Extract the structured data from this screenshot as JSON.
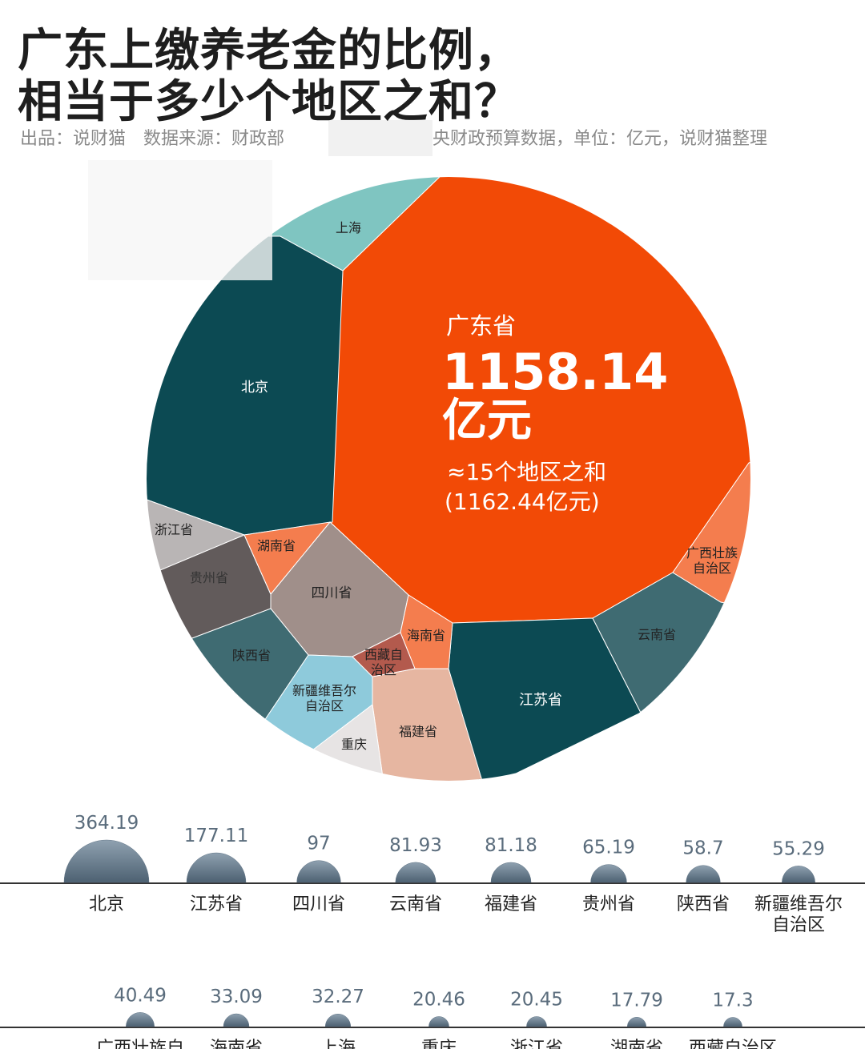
{
  "chart_data": {
    "type": "voronoi-bubble",
    "title": [
      "广东上缴养老金的比例，",
      "相当于多少个地区之和？"
    ],
    "subtitle": [
      "出品：说财猫　数据来源：财政部",
      "央财政预算数据，单位：亿元，说财猫整理"
    ],
    "highlight": {
      "name": "广东省",
      "value": 1158.14,
      "unit": "亿元",
      "note": "≈15个地区之和",
      "total_label": "(1162.44亿元)",
      "color": "#f24a06"
    },
    "categories": [
      "北京",
      "江苏省",
      "四川省",
      "云南省",
      "福建省",
      "贵州省",
      "陕西省",
      "新疆维吾尔自治区",
      "广西壮族自治区",
      "海南省",
      "上海",
      "重庆",
      "浙江省",
      "湖南省",
      "西藏自治区"
    ],
    "values": [
      364.19,
      177.11,
      97,
      81.93,
      81.18,
      65.19,
      58.7,
      55.29,
      40.49,
      33.09,
      32.27,
      20.46,
      20.45,
      17.79,
      17.3
    ],
    "colors": [
      "#0c4a53",
      "#0c4a53",
      "#a08f8a",
      "#3f6b72",
      "#e6b6a1",
      "#625b5b",
      "#3f6b72",
      "#8ecadb",
      "#f47d4e",
      "#f47d4e",
      "#7fc5c1",
      "#e7e4e4",
      "#b9b5b5",
      "#f47d4e",
      "#b35a4d"
    ],
    "bubble_color": "#5f7385"
  }
}
